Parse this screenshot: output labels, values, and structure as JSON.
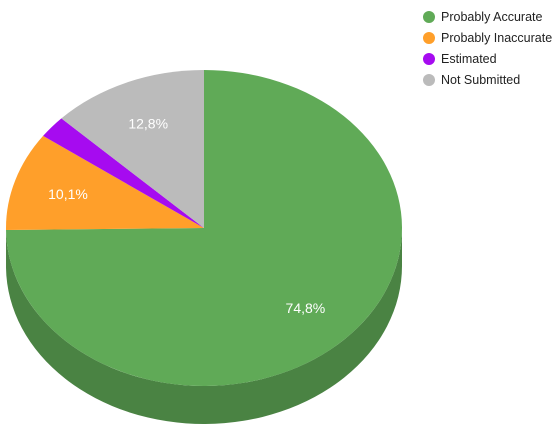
{
  "chart_data": {
    "type": "pie",
    "style": "3d",
    "legend_position": "top-right",
    "series": [
      {
        "name": "Probably Accurate",
        "value": 74.8,
        "label": "74,8%",
        "color": "#60aa57",
        "side_color": "#4a8343"
      },
      {
        "name": "Probably Inaccurate",
        "value": 10.1,
        "label": "10,1%",
        "color": "#ff9f2a",
        "side_color": "#c47a20"
      },
      {
        "name": "Estimated",
        "value": 2.3,
        "label": "",
        "color": "#a60bf0",
        "side_color": "#7d08b5"
      },
      {
        "name": "Not Submitted",
        "value": 12.8,
        "label": "12,8%",
        "color": "#bbbbbb",
        "side_color": "#8f8f8f"
      }
    ]
  }
}
